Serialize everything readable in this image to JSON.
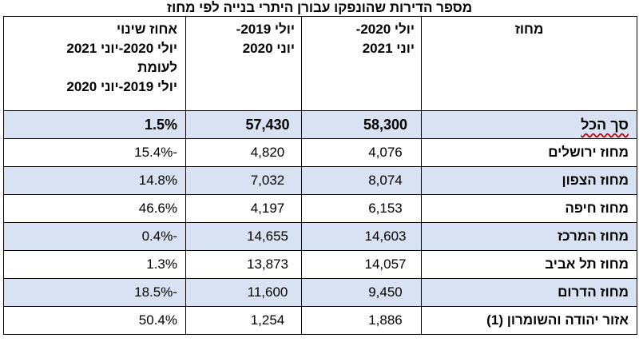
{
  "title": "מספר הדירות שהונפקו עבורן היתרי בנייה לפי מחוז",
  "headers": {
    "region": "מחוז",
    "period_current": "יולי 2020-\nיוני 2021",
    "period_previous": "יולי 2019-\nיוני 2020",
    "change": "אחוז שינוי\nיולי 2020-יוני 2021\nלעומת\nיולי 2019-יוני 2020"
  },
  "rows": [
    {
      "region": "סך הכל",
      "current": "58,300",
      "previous": "57,430",
      "change": "1.5%"
    },
    {
      "region": "מחוז ירושלים",
      "current": "4,076",
      "previous": "4,820",
      "change": "-15.4%"
    },
    {
      "region": "מחוז הצפון",
      "current": "8,074",
      "previous": "7,032",
      "change": "14.8%"
    },
    {
      "region": "מחוז חיפה",
      "current": "6,153",
      "previous": "4,197",
      "change": "46.6%"
    },
    {
      "region": "מחוז המרכז",
      "current": "14,603",
      "previous": "14,655",
      "change": "-0.4%"
    },
    {
      "region": "מחוז תל אביב",
      "current": "14,057",
      "previous": "13,873",
      "change": "1.3%"
    },
    {
      "region": "מחוז הדרום",
      "current": "9,450",
      "previous": "11,600",
      "change": "-18.5%"
    },
    {
      "region": "אזור יהודה והשומרון (1)",
      "current": "1,886",
      "previous": "1,254",
      "change": "50.4%"
    }
  ],
  "colors": {
    "shaded_row": "#d9e2f3"
  }
}
